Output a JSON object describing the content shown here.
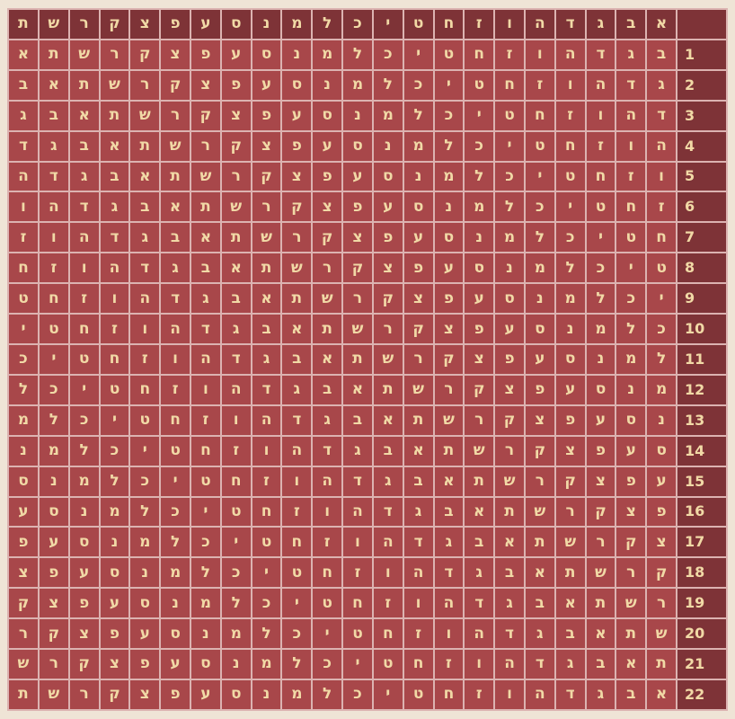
{
  "colors": {
    "header_bg": "#7e3337",
    "cell_bg": "#a8474a",
    "grid_line": "#dcb3b1",
    "text": "#f1d9a6",
    "page_bg": "#efe4d6"
  },
  "header": [
    "א",
    "ב",
    "ג",
    "ד",
    "ה",
    "ו",
    "ז",
    "ח",
    "ט",
    "י",
    "כ",
    "ל",
    "מ",
    "נ",
    "ס",
    "ע",
    "פ",
    "צ",
    "ק",
    "ר",
    "ש",
    "ת"
  ],
  "rows": [
    {
      "num": "1",
      "letters": "בגדהוזחטיכלמנסעפצקרשתא"
    },
    {
      "num": "2",
      "letters": "גדהוזחטיכלמנסעפצקרשתאב"
    },
    {
      "num": "3",
      "letters": "דהוזחטיכלמנסעפצקרשתאבג"
    },
    {
      "num": "4",
      "letters": "הוזחטיכלמנסעפצקרשתאבגד"
    },
    {
      "num": "5",
      "letters": "וזחטיכלמנסעפצקרשתאבגדה"
    },
    {
      "num": "6",
      "letters": "זחטיכלמנסעפצקרשתאבגדהו"
    },
    {
      "num": "7",
      "letters": "חטיכלמנסעפצקרשתאבגדהוז"
    },
    {
      "num": "8",
      "letters": "טיכלמנסעפצקרשתאבגדהוזח"
    },
    {
      "num": "9",
      "letters": "יכלמנסעפצקרשתאבגדהוזחט"
    },
    {
      "num": "10",
      "letters": "כלמנסעפצקרשתאבגדהוזחטי"
    },
    {
      "num": "11",
      "letters": "למנסעפצקרשתאבגדהוזחטיכ"
    },
    {
      "num": "12",
      "letters": "מנסעפצקרשתאבגדהוזחטיכל"
    },
    {
      "num": "13",
      "letters": "נסעפצקרשתאבגדהוזחטיכלמ"
    },
    {
      "num": "14",
      "letters": "סעפצקרשתאבגדהוזחטיכלמנ"
    },
    {
      "num": "15",
      "letters": "עפצקרשתאבגדהוזחטיכלמנס"
    },
    {
      "num": "16",
      "letters": "פצקרשתאבגדהוזחטיכלמנסע"
    },
    {
      "num": "17",
      "letters": "צקרשתאבגדהוזחטיכלמנסעפ"
    },
    {
      "num": "18",
      "letters": "קרשתאבגדהוזחטיכלמנסעפצ"
    },
    {
      "num": "19",
      "letters": "רשתאבגדהוזחטיכלמנסעפצק"
    },
    {
      "num": "20",
      "letters": "שתאבגדהוזחטיכלמנסעפצקר"
    },
    {
      "num": "21",
      "letters": "תאבגדהוזחטיכלמנסעפצקרש"
    },
    {
      "num": "22",
      "letters": "אבגדהוזחטיכלמנסעפצקרשת"
    }
  ]
}
